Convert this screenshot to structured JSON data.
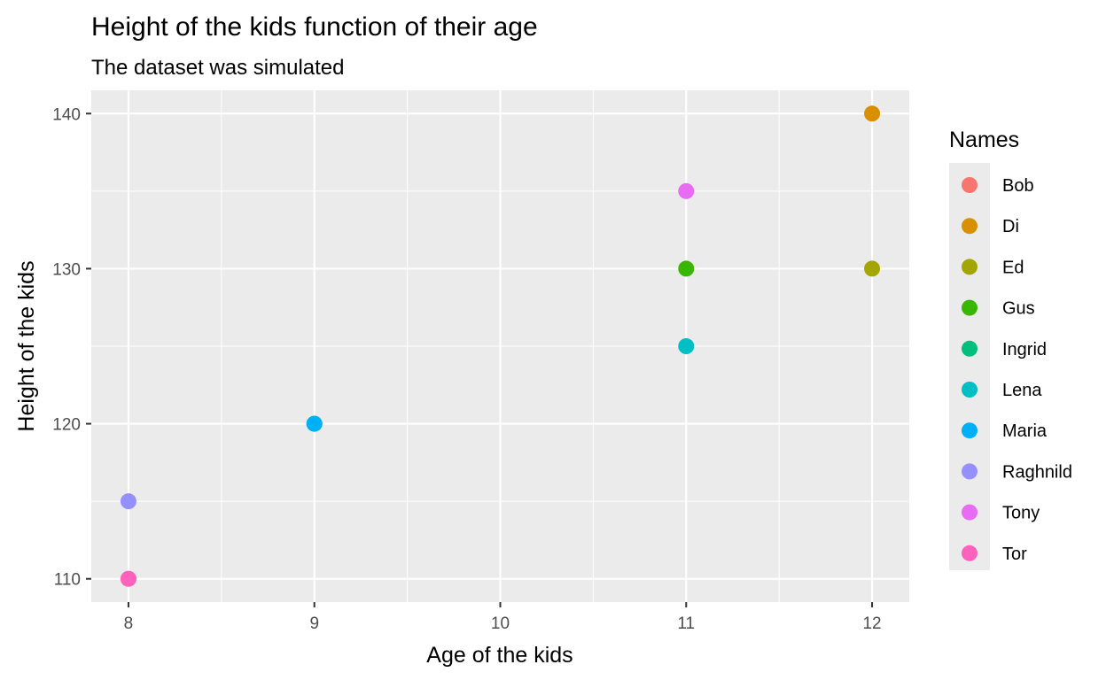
{
  "chart_data": {
    "type": "scatter",
    "title": "Height of the kids function of their age",
    "subtitle": "The dataset was simulated",
    "xlabel": "Age of the kids",
    "ylabel": "Height of the kids",
    "xlim": [
      7.8,
      12.2
    ],
    "ylim": [
      108.5,
      141.5
    ],
    "x_ticks": [
      8,
      9,
      10,
      11,
      12
    ],
    "y_ticks": [
      110,
      120,
      130,
      140
    ],
    "grid": true,
    "legend": {
      "title": "Names",
      "position": "right",
      "entries": [
        {
          "name": "Bob",
          "color": "#F8766D"
        },
        {
          "name": "Di",
          "color": "#D89000"
        },
        {
          "name": "Ed",
          "color": "#A3A500"
        },
        {
          "name": "Gus",
          "color": "#39B600"
        },
        {
          "name": "Ingrid",
          "color": "#00BF7D"
        },
        {
          "name": "Lena",
          "color": "#00BFC4"
        },
        {
          "name": "Maria",
          "color": "#00B0F6"
        },
        {
          "name": "Raghnild",
          "color": "#9590FF"
        },
        {
          "name": "Tony",
          "color": "#E76BF3"
        },
        {
          "name": "Tor",
          "color": "#FF62BC"
        }
      ]
    },
    "points": [
      {
        "name": "Bob",
        "x": 8,
        "y": 110
      },
      {
        "name": "Di",
        "x": 12,
        "y": 140
      },
      {
        "name": "Ed",
        "x": 12,
        "y": 130
      },
      {
        "name": "Gus",
        "x": 11,
        "y": 130
      },
      {
        "name": "Ingrid",
        "x": 9,
        "y": 120
      },
      {
        "name": "Lena",
        "x": 11,
        "y": 125
      },
      {
        "name": "Maria",
        "x": 9,
        "y": 120
      },
      {
        "name": "Raghnild",
        "x": 8,
        "y": 115
      },
      {
        "name": "Tony",
        "x": 11,
        "y": 135
      },
      {
        "name": "Tor",
        "x": 8,
        "y": 110
      }
    ],
    "colors": {
      "panel_background": "#EBEBEB",
      "grid_major": "#FFFFFF",
      "tick_text": "#4D4D4D"
    }
  }
}
